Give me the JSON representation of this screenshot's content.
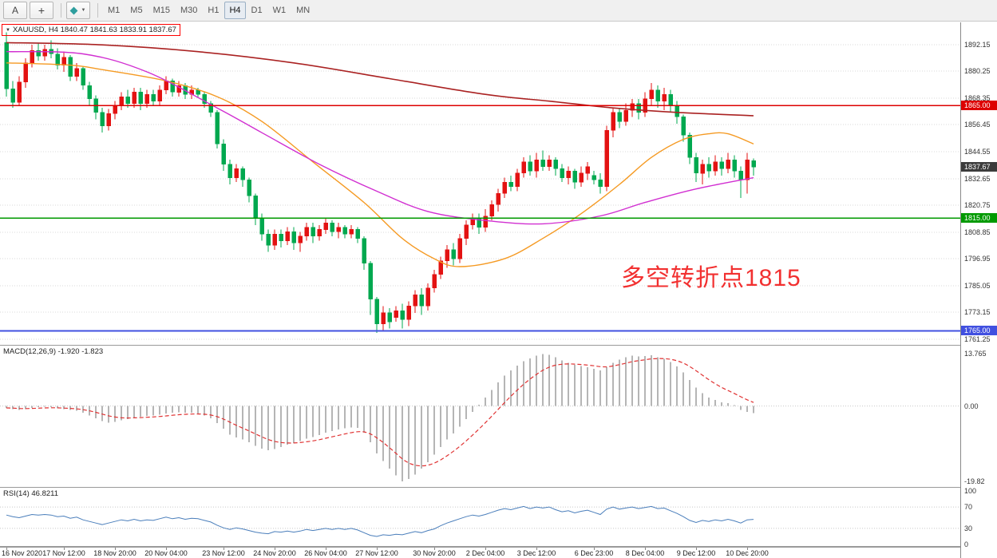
{
  "toolbar": {
    "tools": [
      {
        "id": "text-tool",
        "label": "A"
      },
      {
        "id": "crosshair-tool",
        "label": "+"
      }
    ],
    "draw_tool": {
      "dropdown_arrow": "▼"
    },
    "timeframes": [
      "M1",
      "M5",
      "M15",
      "M30",
      "H1",
      "H4",
      "D1",
      "W1",
      "MN"
    ],
    "active_timeframe": "H4"
  },
  "chart": {
    "collapse_icon": "▼",
    "title": "XAUUSD, H4  1840.47 1841.63 1833.91 1837.67",
    "symbol": "XAUUSD",
    "period": "H4",
    "annotation": {
      "text": "多空转折点1815"
    }
  },
  "colors": {
    "candle_up": "#e31212",
    "candle_down": "#00a84f",
    "grid": "#d9d9d9",
    "macd_hist": "#b5b5b5",
    "macd_signal": "#e03232",
    "rsi_line": "#4a7ebb",
    "current_tag_bg": "#3c3c3c"
  },
  "chart_data": {
    "type": "candlestick",
    "symbol": "XAUUSD",
    "timeframe": "H4",
    "ohlc_current": {
      "open": 1840.47,
      "high": 1841.63,
      "low": 1833.91,
      "close": 1837.67
    },
    "price_ticks": [
      "1892.15",
      "1880.25",
      "1868.35",
      "1856.45",
      "1844.55",
      "1832.65",
      "1820.75",
      "1808.85",
      "1796.95",
      "1785.05",
      "1773.15",
      "1761.25"
    ],
    "hlines": [
      {
        "price": 1865.0,
        "label": "1865.00",
        "color": "#dd0000",
        "width": 1.5
      },
      {
        "price": 1815.0,
        "label": "1815.00",
        "color": "#009a00",
        "width": 1.5
      },
      {
        "price": 1765.0,
        "label": "1765.00",
        "color": "#4150e0",
        "width": 2
      }
    ],
    "current_price": {
      "value": 1837.67,
      "label": "1837.67"
    },
    "candles": [
      [
        1893,
        1897.5,
        1869,
        1872.5
      ],
      [
        1872.5,
        1876,
        1864,
        1866.5
      ],
      [
        1866.5,
        1878,
        1865,
        1875.5
      ],
      [
        1875.5,
        1886,
        1873,
        1884
      ],
      [
        1884,
        1892,
        1882,
        1889.5
      ],
      [
        1889.5,
        1893,
        1885,
        1887
      ],
      [
        1887,
        1892,
        1885,
        1890
      ],
      [
        1890,
        1894,
        1886,
        1888
      ],
      [
        1888,
        1890.5,
        1881,
        1883
      ],
      [
        1883,
        1889,
        1880,
        1886.5
      ],
      [
        1886.5,
        1887.5,
        1876,
        1878
      ],
      [
        1878,
        1884,
        1876,
        1881.5
      ],
      [
        1881.5,
        1882.5,
        1872,
        1874
      ],
      [
        1874,
        1875.5,
        1865,
        1868
      ],
      [
        1868,
        1869.5,
        1859,
        1862
      ],
      [
        1862,
        1864,
        1853,
        1856
      ],
      [
        1856,
        1863.5,
        1854,
        1861.5
      ],
      [
        1861.5,
        1867,
        1859,
        1865
      ],
      [
        1865,
        1871,
        1863,
        1869
      ],
      [
        1869,
        1872,
        1864,
        1866
      ],
      [
        1866,
        1873,
        1864,
        1871
      ],
      [
        1871,
        1873,
        1863,
        1866
      ],
      [
        1866,
        1872,
        1864,
        1870
      ],
      [
        1870,
        1872,
        1865,
        1867
      ],
      [
        1867,
        1874,
        1865,
        1872
      ],
      [
        1872,
        1878,
        1870,
        1876
      ],
      [
        1876,
        1877,
        1869,
        1871
      ],
      [
        1871,
        1876,
        1869,
        1874
      ],
      [
        1874,
        1875,
        1868,
        1870
      ],
      [
        1870,
        1874,
        1868,
        1872
      ],
      [
        1872,
        1873,
        1868.5,
        1870
      ],
      [
        1870,
        1871,
        1864,
        1866
      ],
      [
        1866,
        1867,
        1860,
        1862
      ],
      [
        1862,
        1863,
        1846,
        1848
      ],
      [
        1848,
        1850,
        1836,
        1839
      ],
      [
        1839,
        1841,
        1830,
        1833
      ],
      [
        1833,
        1839,
        1831,
        1837
      ],
      [
        1837,
        1838,
        1829,
        1832
      ],
      [
        1832,
        1833,
        1822,
        1825
      ],
      [
        1825,
        1826,
        1812,
        1815
      ],
      [
        1815,
        1817,
        1805,
        1808
      ],
      [
        1808,
        1810,
        1800,
        1803
      ],
      [
        1803,
        1810,
        1801,
        1808
      ],
      [
        1808,
        1810,
        1802,
        1805
      ],
      [
        1805,
        1811,
        1803,
        1809
      ],
      [
        1809,
        1811,
        1801,
        1804
      ],
      [
        1804,
        1809,
        1800,
        1807
      ],
      [
        1807,
        1813,
        1805,
        1811
      ],
      [
        1811,
        1813,
        1804,
        1807
      ],
      [
        1807,
        1812,
        1805,
        1810
      ],
      [
        1810,
        1815,
        1808,
        1813
      ],
      [
        1813,
        1814,
        1807,
        1809
      ],
      [
        1809,
        1813,
        1806,
        1811
      ],
      [
        1811,
        1812,
        1806,
        1808
      ],
      [
        1808,
        1812,
        1806,
        1810
      ],
      [
        1810,
        1811,
        1804,
        1806
      ],
      [
        1806,
        1807,
        1792,
        1795
      ],
      [
        1795,
        1796,
        1772,
        1779
      ],
      [
        1779,
        1780,
        1764,
        1768
      ],
      [
        1768,
        1776,
        1765,
        1773
      ],
      [
        1773,
        1775,
        1766,
        1769
      ],
      [
        1771,
        1776,
        1769,
        1774
      ],
      [
        1774,
        1777,
        1766,
        1770
      ],
      [
        1770,
        1778,
        1767,
        1776
      ],
      [
        1776,
        1783,
        1773,
        1781
      ],
      [
        1781,
        1784,
        1772,
        1776
      ],
      [
        1776,
        1786,
        1774,
        1784
      ],
      [
        1784,
        1792,
        1782,
        1790
      ],
      [
        1790,
        1798,
        1788,
        1796
      ],
      [
        1796,
        1803,
        1793,
        1801
      ],
      [
        1801,
        1804,
        1794,
        1797
      ],
      [
        1797,
        1808,
        1795,
        1806
      ],
      [
        1806,
        1814,
        1803,
        1812
      ],
      [
        1812,
        1817,
        1810,
        1815
      ],
      [
        1815,
        1817,
        1808,
        1811
      ],
      [
        1811,
        1819,
        1809,
        1816
      ],
      [
        1816,
        1823,
        1814,
        1821
      ],
      [
        1821,
        1828,
        1818,
        1826
      ],
      [
        1826,
        1833,
        1824,
        1831
      ],
      [
        1831,
        1834,
        1827,
        1829
      ],
      [
        1829,
        1837,
        1827,
        1835
      ],
      [
        1835,
        1842,
        1833,
        1840
      ],
      [
        1840,
        1843,
        1834,
        1836
      ],
      [
        1836,
        1844,
        1833,
        1841
      ],
      [
        1841,
        1845,
        1836,
        1838
      ],
      [
        1838,
        1843,
        1836,
        1841
      ],
      [
        1841,
        1842,
        1834,
        1837
      ],
      [
        1837,
        1839,
        1831,
        1833
      ],
      [
        1833,
        1838,
        1830,
        1836
      ],
      [
        1836,
        1837,
        1828,
        1831
      ],
      [
        1831,
        1838,
        1829,
        1835
      ],
      [
        1835,
        1840,
        1832,
        1838
      ],
      [
        1834,
        1836,
        1830,
        1832
      ],
      [
        1832,
        1835,
        1826,
        1829
      ],
      [
        1829,
        1856,
        1827,
        1854
      ],
      [
        1854,
        1864,
        1851,
        1862
      ],
      [
        1862,
        1864,
        1855,
        1858
      ],
      [
        1858,
        1866,
        1856,
        1863
      ],
      [
        1863,
        1868,
        1860,
        1866
      ],
      [
        1866,
        1868,
        1859,
        1862
      ],
      [
        1862,
        1871,
        1860,
        1868
      ],
      [
        1868,
        1875,
        1865,
        1872
      ],
      [
        1872,
        1874,
        1864,
        1867
      ],
      [
        1867,
        1873,
        1863,
        1870
      ],
      [
        1870,
        1872,
        1862,
        1865
      ],
      [
        1865,
        1867,
        1857,
        1860
      ],
      [
        1860,
        1861,
        1849,
        1852
      ],
      [
        1852,
        1853,
        1839,
        1842
      ],
      [
        1842,
        1844,
        1831,
        1835
      ],
      [
        1835,
        1841,
        1830,
        1839
      ],
      [
        1839,
        1842,
        1833,
        1836
      ],
      [
        1836,
        1843,
        1834,
        1840
      ],
      [
        1840,
        1842,
        1834,
        1837
      ],
      [
        1837,
        1844,
        1835,
        1841
      ],
      [
        1841,
        1843,
        1833,
        1836
      ],
      [
        1836,
        1838,
        1824,
        1832
      ],
      [
        1832,
        1844,
        1826,
        1841
      ],
      [
        1840.5,
        1841.6,
        1833.9,
        1837.7
      ]
    ],
    "ma_lines": [
      {
        "name": "ma-long",
        "color": "#aa2222",
        "width": 1.6,
        "points": [
          [
            0,
            1893
          ],
          [
            15,
            1892
          ],
          [
            30,
            1889
          ],
          [
            45,
            1884
          ],
          [
            60,
            1877
          ],
          [
            75,
            1870
          ],
          [
            85,
            1867
          ],
          [
            95,
            1864
          ],
          [
            105,
            1862
          ],
          [
            117,
            1860.5
          ]
        ]
      },
      {
        "name": "ma-mid",
        "color": "#f59a23",
        "width": 1.4,
        "points": [
          [
            0,
            1884
          ],
          [
            10,
            1883
          ],
          [
            15,
            1881
          ],
          [
            25,
            1876
          ],
          [
            33,
            1869
          ],
          [
            40,
            1858
          ],
          [
            48,
            1840
          ],
          [
            56,
            1822
          ],
          [
            62,
            1806
          ],
          [
            67,
            1797
          ],
          [
            71,
            1793.5
          ],
          [
            78,
            1797
          ],
          [
            84,
            1806
          ],
          [
            90,
            1817
          ],
          [
            96,
            1830
          ],
          [
            101,
            1842
          ],
          [
            106,
            1850
          ],
          [
            110,
            1852.5
          ],
          [
            113,
            1852.5
          ],
          [
            117,
            1848
          ]
        ]
      },
      {
        "name": "ma-slow",
        "color": "#d12fd1",
        "width": 1.4,
        "points": [
          [
            0,
            1889
          ],
          [
            12,
            1888
          ],
          [
            22,
            1880
          ],
          [
            33,
            1864
          ],
          [
            40,
            1853
          ],
          [
            49,
            1839
          ],
          [
            58,
            1827
          ],
          [
            66,
            1818
          ],
          [
            75,
            1814
          ],
          [
            84,
            1812.5
          ],
          [
            93,
            1816
          ],
          [
            100,
            1822
          ],
          [
            108,
            1828
          ],
          [
            117,
            1833
          ]
        ]
      }
    ],
    "macd": {
      "label": "MACD(12,26,9) -1.920 -1.823",
      "range": [
        -19.82,
        13.765
      ],
      "axis": [
        {
          "v": 13.765,
          "t": "13.765"
        },
        {
          "v": 0,
          "t": "0.00"
        },
        {
          "v": -19.82,
          "t": "-19.82"
        }
      ],
      "values": [
        -0.5,
        -0.8,
        -1,
        -0.8,
        -0.5,
        -0.3,
        -0.2,
        -0.3,
        -0.6,
        -0.8,
        -1,
        -1.2,
        -1.8,
        -2.5,
        -3.2,
        -4,
        -4.4,
        -4.2,
        -3.8,
        -3.4,
        -3,
        -2.8,
        -2.6,
        -2.5,
        -2.3,
        -2,
        -1.8,
        -1.7,
        -1.8,
        -1.8,
        -2,
        -2.5,
        -3.2,
        -4.5,
        -6,
        -7.5,
        -8.3,
        -8.8,
        -9.5,
        -10.5,
        -11.2,
        -11.6,
        -11.3,
        -10.8,
        -10.2,
        -9.7,
        -9.2,
        -8.6,
        -8.2,
        -7.6,
        -7,
        -6.6,
        -6.2,
        -5.9,
        -5.6,
        -5.8,
        -7,
        -9.5,
        -12.5,
        -14.5,
        -16.5,
        -18.2,
        -19.8,
        -19.2,
        -18,
        -16.5,
        -14.8,
        -12.8,
        -10.8,
        -8.8,
        -7.2,
        -5.4,
        -3.4,
        -1.6,
        0.3,
        2.2,
        4.2,
        6.2,
        8,
        9.4,
        10.6,
        11.8,
        12.5,
        13.2,
        13.7,
        13.5,
        12.8,
        12,
        11.4,
        10.8,
        10.5,
        10.2,
        9.8,
        9.4,
        10.2,
        11.4,
        12.2,
        12.8,
        13.2,
        13,
        13.1,
        13.3,
        12.8,
        12.4,
        11.6,
        10.4,
        8.8,
        6.8,
        4.8,
        3.4,
        2.2,
        1.6,
        1,
        0.8,
        0.2,
        -1,
        -1.6,
        -1.9
      ]
    },
    "rsi": {
      "label": "RSI(14) 46.8211",
      "range": [
        0,
        100
      ],
      "levels": [
        70,
        30
      ],
      "axis": [
        {
          "v": 100,
          "t": "100"
        },
        {
          "v": 70,
          "t": "70"
        },
        {
          "v": 30,
          "t": "30"
        },
        {
          "v": 0,
          "t": "0"
        }
      ],
      "values": [
        55,
        52,
        50,
        53,
        56,
        55,
        56,
        55,
        52,
        53,
        49,
        51,
        46,
        43,
        40,
        37,
        40,
        43,
        46,
        44,
        47,
        44,
        46,
        45,
        48,
        51,
        48,
        50,
        47,
        49,
        48,
        45,
        42,
        36,
        31,
        28,
        31,
        29,
        26,
        23,
        21,
        20,
        24,
        23,
        25,
        23,
        25,
        28,
        26,
        28,
        30,
        28,
        30,
        28,
        30,
        27,
        22,
        17,
        15,
        18,
        17,
        19,
        18,
        21,
        24,
        22,
        26,
        29,
        35,
        40,
        44,
        48,
        52,
        55,
        53,
        56,
        60,
        64,
        67,
        65,
        68,
        71,
        67,
        70,
        68,
        70,
        65,
        61,
        63,
        59,
        62,
        64,
        60,
        56,
        66,
        70,
        66,
        68,
        70,
        67,
        69,
        71,
        67,
        68,
        63,
        58,
        52,
        45,
        41,
        45,
        43,
        46,
        44,
        47,
        44,
        40,
        46,
        46.8
      ]
    },
    "time_labels": [
      {
        "i": 0,
        "t": "16 Nov 2020"
      },
      {
        "i": 9,
        "t": "17 Nov 12:00"
      },
      {
        "i": 17,
        "t": "18 Nov 20:00"
      },
      {
        "i": 25,
        "t": "20 Nov 04:00"
      },
      {
        "i": 34,
        "t": "23 Nov 12:00"
      },
      {
        "i": 42,
        "t": "24 Nov 20:00"
      },
      {
        "i": 50,
        "t": "26 Nov 04:00"
      },
      {
        "i": 58,
        "t": "27 Nov 12:00"
      },
      {
        "i": 67,
        "t": "30 Nov 20:00"
      },
      {
        "i": 75,
        "t": "2 Dec 04:00"
      },
      {
        "i": 83,
        "t": "3 Dec 12:00"
      },
      {
        "i": 92,
        "t": "6 Dec 23:00"
      },
      {
        "i": 100,
        "t": "8 Dec 04:00"
      },
      {
        "i": 108,
        "t": "9 Dec 12:00"
      },
      {
        "i": 116,
        "t": "10 Dec 20:00"
      }
    ]
  }
}
